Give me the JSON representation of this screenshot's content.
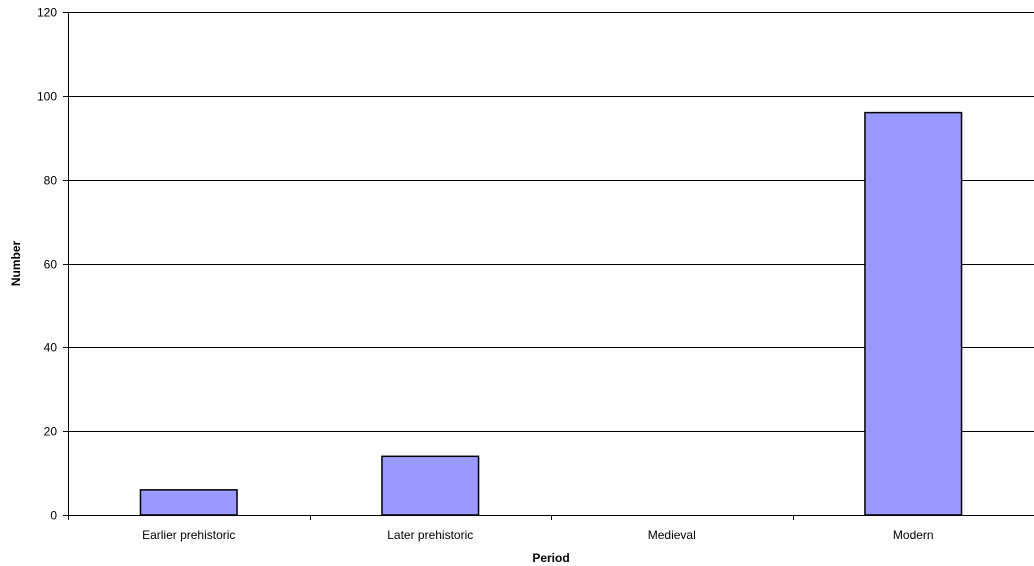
{
  "chart_data": {
    "type": "bar",
    "title": "",
    "xlabel": "Period",
    "ylabel": "Number",
    "categories": [
      "Earlier prehistoric",
      "Later prehistoric",
      "Medieval",
      "Modern"
    ],
    "values": [
      6,
      14,
      0,
      96
    ],
    "ylim": [
      0,
      120
    ],
    "yticks": [
      "0",
      "20",
      "40",
      "60",
      "80",
      "100",
      "120"
    ],
    "grid": true,
    "legend": "none",
    "bar_color": "#9999FF",
    "bar_edge_color": "#000000"
  }
}
